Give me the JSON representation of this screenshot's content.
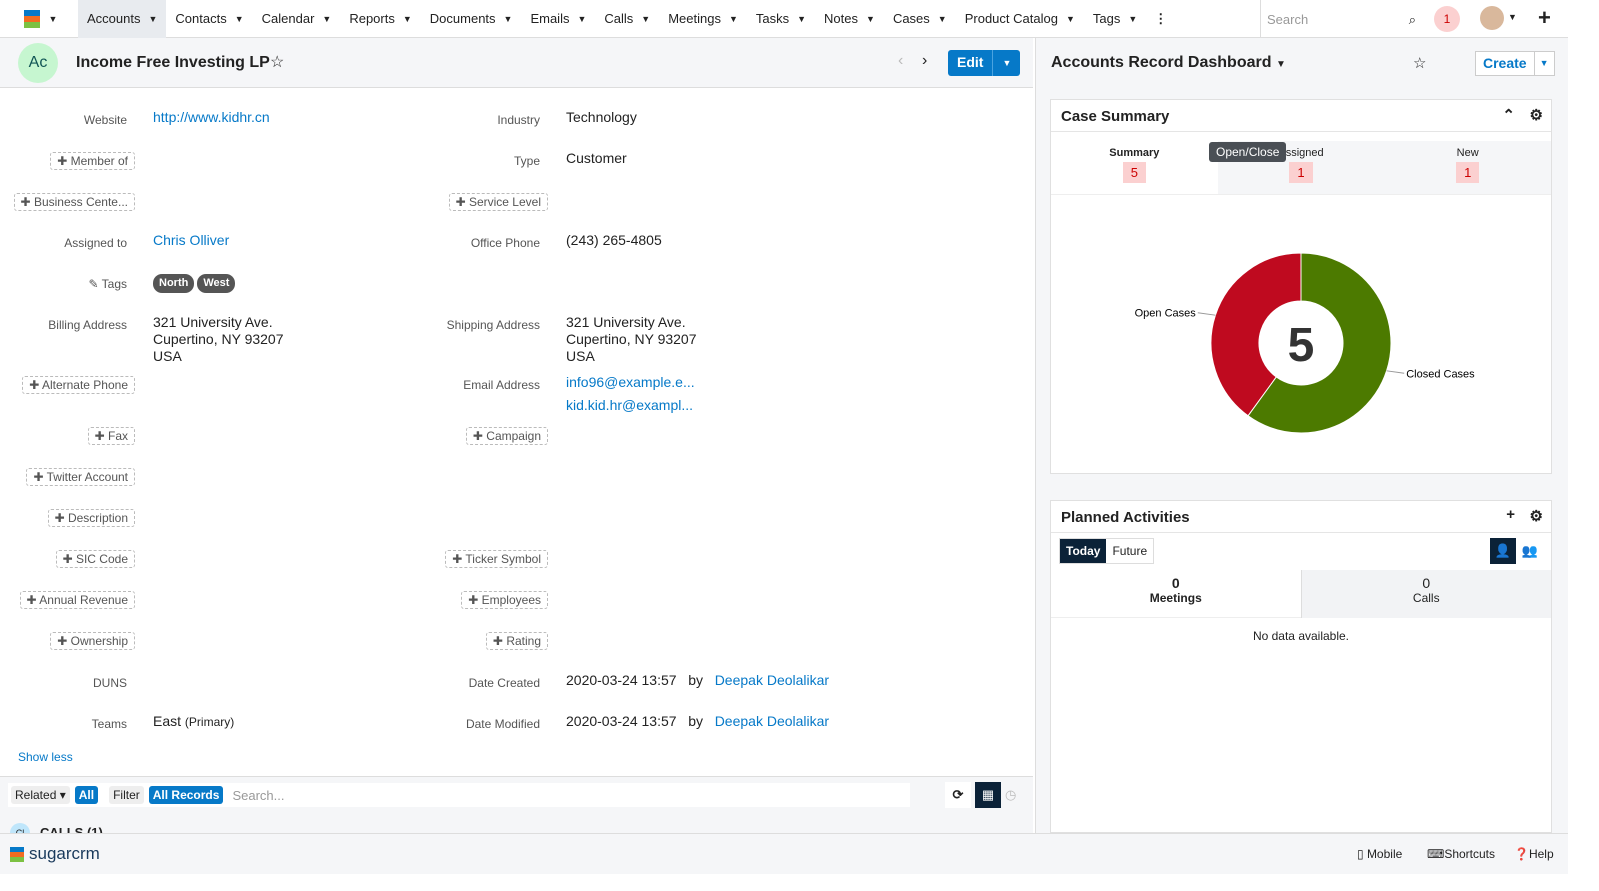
{
  "nav": {
    "items": [
      "Accounts",
      "Contacts",
      "Calendar",
      "Reports",
      "Documents",
      "Emails",
      "Calls",
      "Meetings",
      "Tasks",
      "Notes",
      "Cases",
      "Product Catalog",
      "Tags"
    ],
    "search_placeholder": "Search",
    "notifications": "1"
  },
  "record": {
    "avatar": "Ac",
    "title": "Income Free Investing LP",
    "edit": "Edit"
  },
  "fields": {
    "website": {
      "label": "Website",
      "value": "http://www.kidhr.cn"
    },
    "industry": {
      "label": "Industry",
      "value": "Technology"
    },
    "member_of": "Member of",
    "type": {
      "label": "Type",
      "value": "Customer"
    },
    "business_center": "Business Cente...",
    "service_level": "Service Level",
    "assigned": {
      "label": "Assigned to",
      "value": "Chris Olliver"
    },
    "office_phone": {
      "label": "Office Phone",
      "value": "(243) 265-4805"
    },
    "tags": {
      "label": "Tags",
      "values": [
        "North",
        "West"
      ]
    },
    "billing": {
      "label": "Billing Address",
      "lines": [
        "321 University Ave.",
        "Cupertino, NY 93207",
        "USA"
      ]
    },
    "shipping": {
      "label": "Shipping Address",
      "lines": [
        "321 University Ave.",
        "Cupertino, NY 93207",
        "USA"
      ]
    },
    "alternate_phone": "Alternate Phone",
    "email": {
      "label": "Email Address",
      "values": [
        "info96@example.e...",
        "kid.kid.hr@exampl..."
      ]
    },
    "fax": "Fax",
    "campaign": "Campaign",
    "twitter": "Twitter Account",
    "description": "Description",
    "sic": "SIC Code",
    "ticker": "Ticker Symbol",
    "revenue": "Annual Revenue",
    "employees": "Employees",
    "ownership": "Ownership",
    "rating": "Rating",
    "duns": {
      "label": "DUNS"
    },
    "created": {
      "label": "Date Created",
      "value": "2020-03-24 13:57",
      "by": "by",
      "user": "Deepak Deolalikar"
    },
    "modified": {
      "label": "Date Modified",
      "value": "2020-03-24 13:57",
      "by": "by",
      "user": "Deepak Deolalikar"
    },
    "teams": {
      "label": "Teams",
      "value": "East",
      "primary": "(Primary)"
    },
    "show_less": "Show less"
  },
  "subpanel": {
    "related": "Related",
    "all": "All",
    "filter": "Filter",
    "all_records": "All Records",
    "search_placeholder": "Search...",
    "calls": "CALLS (1)",
    "calls_icon": "Cl"
  },
  "dashboard": {
    "title": "Accounts Record Dashboard",
    "create": "Create",
    "case_summary": {
      "title": "Case Summary",
      "tooltip": "Open/Close",
      "tabs": [
        {
          "label": "Summary",
          "count": "5"
        },
        {
          "label": "Assigned",
          "count": "1"
        },
        {
          "label": "New",
          "count": "1"
        }
      ]
    },
    "planned": {
      "title": "Planned Activities",
      "today": "Today",
      "future": "Future",
      "meetings": {
        "count": "0",
        "label": "Meetings"
      },
      "calls": {
        "count": "0",
        "label": "Calls"
      },
      "empty": "No data available."
    }
  },
  "chart_data": {
    "type": "pie",
    "donut": true,
    "center_label": "5",
    "slices": [
      {
        "name": "Open Cases",
        "value": 2,
        "color": "#bf0a1f"
      },
      {
        "name": "Closed Cases",
        "value": 3,
        "color": "#4c7a00"
      }
    ]
  },
  "footer": {
    "brand": "sugarcrm",
    "mobile": "Mobile",
    "shortcuts": "Shortcuts",
    "help": "Help"
  }
}
